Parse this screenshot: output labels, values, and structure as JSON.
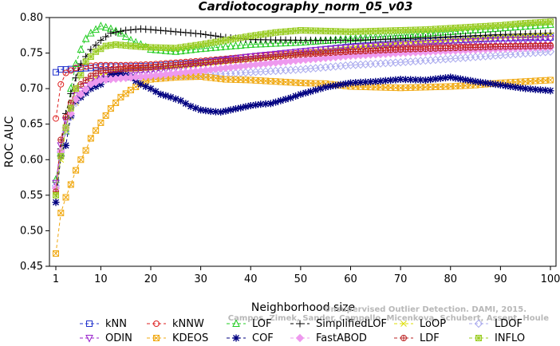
{
  "chart_data": {
    "type": "line",
    "title": "Cardiotocography_norm_05_v03",
    "xlabel": "Neighborhood size",
    "ylabel": "ROC AUC",
    "xlim": [
      0,
      100
    ],
    "ylim": [
      0.45,
      0.8
    ],
    "x_ticks": [
      1,
      10,
      20,
      30,
      40,
      50,
      60,
      70,
      80,
      90,
      100
    ],
    "y_ticks": [
      0.45,
      0.5,
      0.55,
      0.6,
      0.65,
      0.7,
      0.75,
      0.8
    ],
    "x_tick_labels": [
      "1",
      "10",
      "20",
      "30",
      "40",
      "50",
      "60",
      "70",
      "80",
      "90",
      "100"
    ],
    "y_tick_labels": [
      "0.45",
      "0.50",
      "0.55",
      "0.60",
      "0.65",
      "0.70",
      "0.75",
      "0.80"
    ],
    "legend_placement": "bottom",
    "series": [
      {
        "name": "kNN",
        "color": "#2233cc",
        "marker": "square",
        "dash": "4,3",
        "points": [
          [
            1,
            0.723
          ],
          [
            2,
            0.727
          ],
          [
            3,
            0.727
          ],
          [
            5,
            0.728
          ],
          [
            8,
            0.729
          ],
          [
            10,
            0.731
          ],
          [
            15,
            0.731
          ],
          [
            20,
            0.732
          ],
          [
            30,
            0.737
          ],
          [
            40,
            0.745
          ],
          [
            50,
            0.752
          ],
          [
            60,
            0.759
          ],
          [
            70,
            0.764
          ],
          [
            80,
            0.768
          ],
          [
            90,
            0.771
          ],
          [
            100,
            0.772
          ]
        ]
      },
      {
        "name": "kNNW",
        "color": "#dd2222",
        "marker": "circle",
        "dash": "4,3",
        "points": [
          [
            1,
            0.658
          ],
          [
            2,
            0.706
          ],
          [
            3,
            0.722
          ],
          [
            5,
            0.729
          ],
          [
            8,
            0.732
          ],
          [
            10,
            0.733
          ],
          [
            15,
            0.733
          ],
          [
            20,
            0.734
          ],
          [
            30,
            0.739
          ],
          [
            40,
            0.745
          ],
          [
            50,
            0.75
          ],
          [
            60,
            0.754
          ],
          [
            70,
            0.757
          ],
          [
            80,
            0.759
          ],
          [
            90,
            0.76
          ],
          [
            100,
            0.761
          ]
        ]
      },
      {
        "name": "LOF",
        "color": "#22cc22",
        "marker": "triangle",
        "dash": "4,3",
        "points": [
          [
            1,
            0.572
          ],
          [
            2,
            0.61
          ],
          [
            3,
            0.64
          ],
          [
            4,
            0.7
          ],
          [
            5,
            0.735
          ],
          [
            6,
            0.755
          ],
          [
            7,
            0.77
          ],
          [
            8,
            0.778
          ],
          [
            10,
            0.788
          ],
          [
            12,
            0.784
          ],
          [
            14,
            0.778
          ],
          [
            16,
            0.768
          ],
          [
            18,
            0.762
          ],
          [
            20,
            0.755
          ],
          [
            25,
            0.752
          ],
          [
            30,
            0.756
          ],
          [
            40,
            0.762
          ],
          [
            50,
            0.765
          ],
          [
            60,
            0.77
          ],
          [
            70,
            0.775
          ],
          [
            80,
            0.78
          ],
          [
            90,
            0.785
          ],
          [
            100,
            0.79
          ]
        ]
      },
      {
        "name": "SimplifiedLOF",
        "color": "#000000",
        "marker": "plus",
        "dash": "4,3",
        "points": [
          [
            1,
            0.54
          ],
          [
            2,
            0.615
          ],
          [
            3,
            0.665
          ],
          [
            4,
            0.693
          ],
          [
            5,
            0.715
          ],
          [
            6,
            0.735
          ],
          [
            8,
            0.755
          ],
          [
            10,
            0.768
          ],
          [
            12,
            0.778
          ],
          [
            15,
            0.782
          ],
          [
            18,
            0.784
          ],
          [
            20,
            0.783
          ],
          [
            25,
            0.78
          ],
          [
            30,
            0.777
          ],
          [
            35,
            0.772
          ],
          [
            40,
            0.769
          ],
          [
            50,
            0.768
          ],
          [
            60,
            0.768
          ],
          [
            70,
            0.77
          ],
          [
            80,
            0.773
          ],
          [
            90,
            0.776
          ],
          [
            100,
            0.778
          ]
        ]
      },
      {
        "name": "LoOP",
        "color": "#dddd00",
        "marker": "x",
        "dash": "4,3",
        "points": [
          [
            1,
            0.555
          ],
          [
            2,
            0.6
          ],
          [
            3,
            0.64
          ],
          [
            5,
            0.68
          ],
          [
            8,
            0.71
          ],
          [
            10,
            0.72
          ],
          [
            15,
            0.726
          ],
          [
            20,
            0.728
          ],
          [
            30,
            0.735
          ],
          [
            40,
            0.742
          ],
          [
            50,
            0.75
          ],
          [
            60,
            0.758
          ],
          [
            70,
            0.764
          ],
          [
            80,
            0.768
          ],
          [
            90,
            0.772
          ],
          [
            100,
            0.775
          ]
        ]
      },
      {
        "name": "LDOF",
        "color": "#aaaaee",
        "marker": "diamond",
        "dash": "4,3",
        "points": [
          [
            1,
            0.563
          ],
          [
            2,
            0.61
          ],
          [
            3,
            0.64
          ],
          [
            5,
            0.68
          ],
          [
            8,
            0.705
          ],
          [
            10,
            0.712
          ],
          [
            15,
            0.716
          ],
          [
            20,
            0.717
          ],
          [
            30,
            0.719
          ],
          [
            40,
            0.723
          ],
          [
            50,
            0.727
          ],
          [
            60,
            0.733
          ],
          [
            70,
            0.737
          ],
          [
            80,
            0.742
          ],
          [
            90,
            0.747
          ],
          [
            100,
            0.752
          ]
        ]
      },
      {
        "name": "ODIN",
        "color": "#9922cc",
        "marker": "triangle-down",
        "dash": "4,3",
        "points": [
          [
            1,
            0.567
          ],
          [
            2,
            0.62
          ],
          [
            3,
            0.655
          ],
          [
            5,
            0.69
          ],
          [
            8,
            0.71
          ],
          [
            10,
            0.718
          ],
          [
            15,
            0.722
          ],
          [
            20,
            0.724
          ],
          [
            30,
            0.735
          ],
          [
            40,
            0.745
          ],
          [
            50,
            0.752
          ],
          [
            60,
            0.758
          ],
          [
            70,
            0.762
          ],
          [
            80,
            0.765
          ],
          [
            90,
            0.768
          ],
          [
            100,
            0.77
          ]
        ]
      },
      {
        "name": "KDEOS",
        "color": "#f0a810",
        "marker": "square-x",
        "dash": "4,3",
        "points": [
          [
            1,
            0.468
          ],
          [
            2,
            0.525
          ],
          [
            3,
            0.547
          ],
          [
            4,
            0.565
          ],
          [
            5,
            0.585
          ],
          [
            6,
            0.6
          ],
          [
            7,
            0.613
          ],
          [
            8,
            0.63
          ],
          [
            10,
            0.652
          ],
          [
            12,
            0.672
          ],
          [
            14,
            0.688
          ],
          [
            16,
            0.698
          ],
          [
            18,
            0.707
          ],
          [
            20,
            0.713
          ],
          [
            25,
            0.716
          ],
          [
            30,
            0.717
          ],
          [
            35,
            0.713
          ],
          [
            40,
            0.712
          ],
          [
            45,
            0.71
          ],
          [
            50,
            0.708
          ],
          [
            55,
            0.707
          ],
          [
            60,
            0.703
          ],
          [
            65,
            0.702
          ],
          [
            70,
            0.701
          ],
          [
            75,
            0.702
          ],
          [
            80,
            0.703
          ],
          [
            85,
            0.705
          ],
          [
            90,
            0.708
          ],
          [
            95,
            0.71
          ],
          [
            100,
            0.712
          ]
        ]
      },
      {
        "name": "COF",
        "color": "#000080",
        "marker": "star",
        "dash": "4,3",
        "points": [
          [
            1,
            0.54
          ],
          [
            2,
            0.605
          ],
          [
            3,
            0.62
          ],
          [
            4,
            0.662
          ],
          [
            5,
            0.683
          ],
          [
            6,
            0.688
          ],
          [
            8,
            0.7
          ],
          [
            10,
            0.706
          ],
          [
            12,
            0.72
          ],
          [
            14,
            0.722
          ],
          [
            16,
            0.716
          ],
          [
            18,
            0.706
          ],
          [
            20,
            0.7
          ],
          [
            22,
            0.692
          ],
          [
            24,
            0.688
          ],
          [
            26,
            0.683
          ],
          [
            28,
            0.675
          ],
          [
            30,
            0.67
          ],
          [
            32,
            0.668
          ],
          [
            34,
            0.667
          ],
          [
            36,
            0.67
          ],
          [
            38,
            0.673
          ],
          [
            40,
            0.676
          ],
          [
            42,
            0.678
          ],
          [
            44,
            0.679
          ],
          [
            46,
            0.683
          ],
          [
            48,
            0.687
          ],
          [
            50,
            0.692
          ],
          [
            55,
            0.702
          ],
          [
            60,
            0.708
          ],
          [
            65,
            0.71
          ],
          [
            70,
            0.713
          ],
          [
            75,
            0.712
          ],
          [
            80,
            0.716
          ],
          [
            85,
            0.71
          ],
          [
            90,
            0.705
          ],
          [
            95,
            0.7
          ],
          [
            100,
            0.697
          ]
        ]
      },
      {
        "name": "FastABOD",
        "color": "#ee99ee",
        "marker": "diamond-filled",
        "dash": "4,3",
        "points": [
          [
            1,
            0.56
          ],
          [
            2,
            0.612
          ],
          [
            3,
            0.645
          ],
          [
            5,
            0.685
          ],
          [
            8,
            0.706
          ],
          [
            10,
            0.712
          ],
          [
            15,
            0.715
          ],
          [
            20,
            0.718
          ],
          [
            30,
            0.725
          ],
          [
            40,
            0.733
          ],
          [
            50,
            0.74
          ],
          [
            60,
            0.746
          ],
          [
            70,
            0.75
          ],
          [
            80,
            0.753
          ],
          [
            90,
            0.756
          ],
          [
            100,
            0.758
          ]
        ]
      },
      {
        "name": "LDF",
        "color": "#bb2222",
        "marker": "circle-plus",
        "dash": "4,3",
        "points": [
          [
            1,
            0.555
          ],
          [
            2,
            0.628
          ],
          [
            3,
            0.66
          ],
          [
            5,
            0.7
          ],
          [
            8,
            0.718
          ],
          [
            10,
            0.725
          ],
          [
            15,
            0.728
          ],
          [
            20,
            0.73
          ],
          [
            30,
            0.736
          ],
          [
            40,
            0.742
          ],
          [
            50,
            0.748
          ],
          [
            60,
            0.752
          ],
          [
            70,
            0.755
          ],
          [
            80,
            0.757
          ],
          [
            90,
            0.759
          ],
          [
            100,
            0.76
          ]
        ]
      },
      {
        "name": "INFLO",
        "color": "#99cc22",
        "marker": "square-star",
        "dash": "4,3",
        "points": [
          [
            1,
            0.55
          ],
          [
            2,
            0.605
          ],
          [
            3,
            0.645
          ],
          [
            5,
            0.7
          ],
          [
            7,
            0.738
          ],
          [
            9,
            0.752
          ],
          [
            11,
            0.76
          ],
          [
            13,
            0.762
          ],
          [
            16,
            0.76
          ],
          [
            20,
            0.758
          ],
          [
            25,
            0.757
          ],
          [
            30,
            0.762
          ],
          [
            35,
            0.768
          ],
          [
            40,
            0.774
          ],
          [
            45,
            0.779
          ],
          [
            50,
            0.782
          ],
          [
            55,
            0.781
          ],
          [
            60,
            0.78
          ],
          [
            65,
            0.781
          ],
          [
            70,
            0.782
          ],
          [
            75,
            0.783
          ],
          [
            80,
            0.785
          ],
          [
            85,
            0.787
          ],
          [
            90,
            0.789
          ],
          [
            95,
            0.792
          ],
          [
            100,
            0.794
          ]
        ]
      }
    ]
  },
  "watermark": {
    "line1": "Unsupervised Outlier Detection. DAMI, 2015.",
    "line2": "Campos, Zimek, Sander, Campello, Micenkova, Schubert, Assent, Houle"
  }
}
